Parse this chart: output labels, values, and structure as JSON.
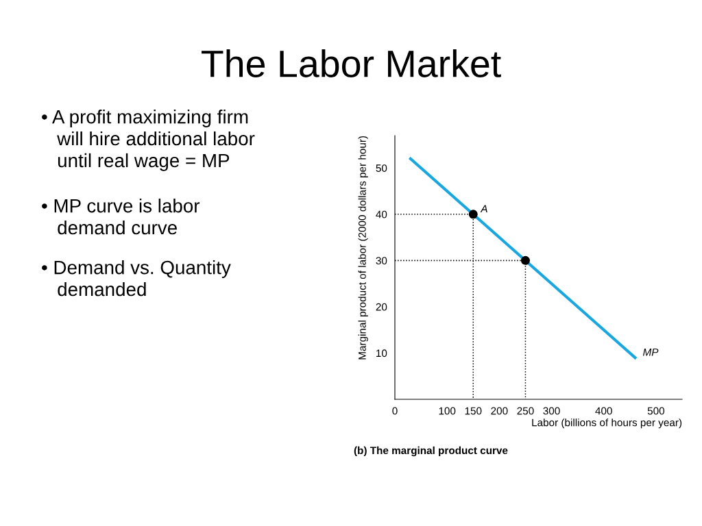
{
  "chart_data": {
    "type": "line",
    "title": "The Labor Market",
    "xlabel": "Labor (billions of hours per year)",
    "ylabel": "Marginal product of labor (2000 dollars per hour)",
    "xlim": [
      0,
      550
    ],
    "ylim": [
      0,
      57
    ],
    "xticks": [
      0,
      100,
      150,
      200,
      250,
      300,
      400,
      500
    ],
    "yticks": [
      10,
      20,
      30,
      40,
      50
    ],
    "grid": false,
    "legend": false,
    "series": [
      {
        "color": "#1aa7e0",
        "x": [
          30,
          460
        ],
        "values": [
          52,
          9
        ],
        "line_style": "solid"
      },
      {
        "color": "#000000",
        "x": [
          0,
          150,
          150
        ],
        "values": [
          40,
          40,
          0
        ],
        "line_style": "dotted"
      },
      {
        "color": "#000000",
        "x": [
          0,
          250,
          250
        ],
        "values": [
          30,
          30,
          0
        ],
        "line_style": "dotted"
      },
      {
        "type": "scatter",
        "color": "#000000",
        "x": [
          150,
          250
        ],
        "values": [
          40,
          30
        ],
        "marker": "circle"
      }
    ],
    "annotations": [
      "• A profit maximizing firm\n   will hire additional labor\n   until real wage = MP",
      "• MP curve is labor\n   demand curve",
      "• Demand vs. Quantity\n   demanded",
      {
        "text": "A",
        "x": 150,
        "y": 40
      },
      {
        "text": "MP",
        "x": 460,
        "y": 9
      },
      "(b) The marginal product curve"
    ]
  }
}
